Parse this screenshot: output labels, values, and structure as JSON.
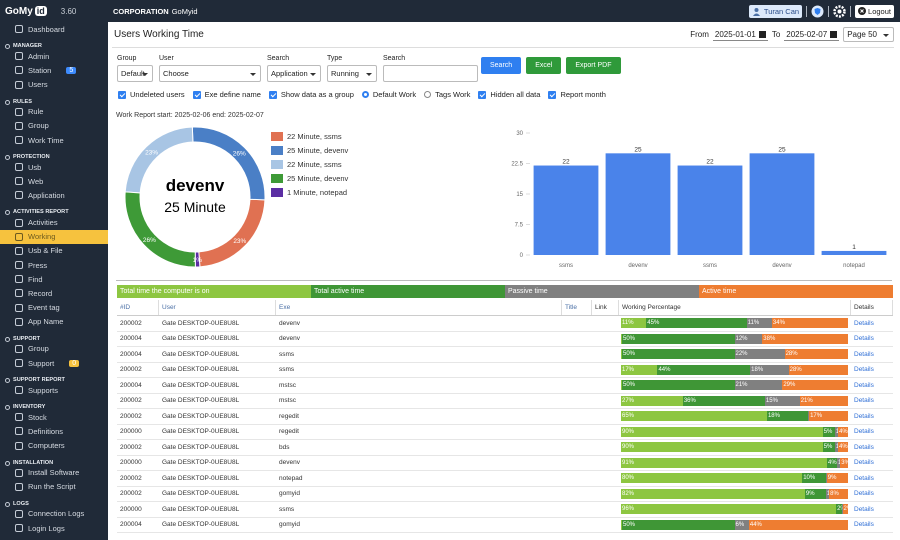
{
  "sidebar": {
    "brand": "GoMy",
    "brand_tag": "id",
    "version": "3.60",
    "menu": [
      {
        "label": "Dashboard"
      },
      {
        "heading": "MANAGER"
      },
      {
        "label": "Admin"
      },
      {
        "label": "Station",
        "badge": 5
      },
      {
        "label": "Users"
      },
      {
        "heading": "RULES"
      },
      {
        "label": "Rule"
      },
      {
        "label": "Group"
      },
      {
        "label": "Work Time"
      },
      {
        "heading": "PROTECTION"
      },
      {
        "label": "Usb"
      },
      {
        "label": "Web"
      },
      {
        "label": "Application"
      },
      {
        "heading": "ACTIVITIES REPORT"
      },
      {
        "label": "Activities"
      },
      {
        "label": "Working",
        "active": true
      },
      {
        "label": "Usb & File"
      },
      {
        "label": "Press"
      },
      {
        "label": "Find"
      },
      {
        "label": "Record"
      },
      {
        "label": "Event tag"
      },
      {
        "label": "App Name"
      },
      {
        "heading": "SUPPORT"
      },
      {
        "label": "Group"
      },
      {
        "label": "Support",
        "badge": 0
      },
      {
        "heading": "SUPPORT REPORT"
      },
      {
        "label": "Supports"
      },
      {
        "heading": "INVENTORY"
      },
      {
        "label": "Stock"
      },
      {
        "label": "Definitions"
      },
      {
        "label": "Computers"
      },
      {
        "heading": "INSTALLATION"
      },
      {
        "label": "Install Software"
      },
      {
        "label": "Run the Script"
      },
      {
        "heading": "LOGS"
      },
      {
        "label": "Connection Logs"
      },
      {
        "label": "Login Logs"
      }
    ]
  },
  "topbar": {
    "org": "CORPORATION",
    "org_name": "GoMyid",
    "user": "Turan Can",
    "logout": "Logout"
  },
  "page": {
    "title": "Users Working Time",
    "from_label": "From",
    "from": "2025-01-01",
    "to_label": "To",
    "to": "2025-02-07",
    "page_size": "Page 50"
  },
  "filters": [
    {
      "label": "Group",
      "value": "Default"
    },
    {
      "label": "User",
      "value": "Choose"
    },
    {
      "label": "Search",
      "value": "Application"
    },
    {
      "label": "Type",
      "value": "Running"
    },
    {
      "label": "Search"
    }
  ],
  "buttons": [
    "Search",
    "Excel",
    "Export PDF"
  ],
  "options": [
    {
      "label": "Undeleted users",
      "kind": "checkbox",
      "checked": true
    },
    {
      "label": "Exe define name",
      "kind": "checkbox",
      "checked": true
    },
    {
      "label": "Show data as a group",
      "kind": "checkbox",
      "checked": true
    },
    {
      "label": "Default Work",
      "kind": "radio",
      "checked": true
    },
    {
      "label": "Tags Work",
      "kind": "radio",
      "checked": false
    },
    {
      "label": "Hidden all data",
      "kind": "checkbox",
      "checked": true
    },
    {
      "label": "Report month",
      "kind": "checkbox",
      "checked": true
    }
  ],
  "report_range": "Work Report start: 2025-02-06 end: 2025-02-07",
  "chart_data": [
    {
      "type": "donut",
      "center_title": "devenv",
      "center_subtitle": "25 Minute",
      "categories": [
        "22 Minute, ssms",
        "25 Minute, devenv",
        "22 Minute, ssms",
        "25 Minute, devenv",
        "1 Minute, notepad"
      ],
      "values": [
        23,
        26,
        23,
        26,
        1
      ],
      "value_labels": [
        "23%",
        "26%",
        "23%",
        "26%",
        "1%"
      ],
      "colors": [
        "#e07152",
        "#4a7fc6",
        "#a8c5e4",
        "#3e9a37",
        "#5b2ea3"
      ]
    },
    {
      "type": "bar",
      "categories": [
        "ssms",
        "devenv",
        "ssms",
        "devenv",
        "notepad"
      ],
      "values": [
        22,
        25,
        22,
        25,
        1
      ],
      "color": "#4a83ea",
      "ylim": [
        0,
        30
      ],
      "yticks": [
        0,
        7.5,
        15,
        22.5,
        30
      ],
      "grid": false
    }
  ],
  "table": {
    "legend": [
      {
        "label": "Total time the computer is on",
        "color": "#8dc641"
      },
      {
        "label": "Total active time",
        "color": "#3f9636"
      },
      {
        "label": "Passive time",
        "color": "#808080"
      },
      {
        "label": "Active time",
        "color": "#ee7d31"
      }
    ],
    "columns": [
      "#ID",
      "User",
      "Exe",
      "Title",
      "Link",
      "Working Percentage",
      "Details"
    ],
    "details": "Details",
    "rows": [
      {
        "id": 200002,
        "user": "Gate DESKTOP-0UE8U8L",
        "exe": "devenv",
        "values": [
          11,
          45,
          11,
          34
        ],
        "value_labels": [
          "11%",
          "45%",
          "11%",
          "34%"
        ]
      },
      {
        "id": 200004,
        "user": "Gate DESKTOP-0UE8U8L",
        "exe": "devenv",
        "values": [
          0,
          50,
          12,
          38
        ],
        "value_labels": [
          "0%",
          "50%",
          "12%",
          "38%"
        ]
      },
      {
        "id": 200004,
        "user": "Gate DESKTOP-0UE8U8L",
        "exe": "ssms",
        "values": [
          0,
          50,
          22,
          28
        ],
        "value_labels": [
          "0%",
          "50%",
          "22%",
          "28%"
        ]
      },
      {
        "id": 200002,
        "user": "Gate DESKTOP-0UE8U8L",
        "exe": "ssms",
        "values": [
          17,
          44,
          18,
          28
        ],
        "value_labels": [
          "17%",
          "44%",
          "18%",
          "28%"
        ]
      },
      {
        "id": 200004,
        "user": "Gate DESKTOP-0UE8U8L",
        "exe": "mstsc",
        "values": [
          0,
          50,
          21,
          29
        ],
        "value_labels": [
          "0%",
          "50%",
          "21%",
          "29%"
        ]
      },
      {
        "id": 200002,
        "user": "Gate DESKTOP-0UE8U8L",
        "exe": "mstsc",
        "values": [
          27,
          36,
          15,
          21
        ],
        "value_labels": [
          "27%",
          "36%",
          "15%",
          "21%"
        ]
      },
      {
        "id": 200002,
        "user": "Gate DESKTOP-0UE8U8L",
        "exe": "regedit",
        "values": [
          65,
          18,
          0,
          17
        ],
        "value_labels": [
          "65%",
          "18%",
          "0%",
          "17%"
        ]
      },
      {
        "id": 200000,
        "user": "Gate DESKTOP-0UE8U8L",
        "exe": "regedit",
        "values": [
          90,
          5,
          1,
          4
        ],
        "value_labels": [
          "90%",
          "5%",
          "1%",
          "4%"
        ]
      },
      {
        "id": 200002,
        "user": "Gate DESKTOP-0UE8U8L",
        "exe": "bds",
        "values": [
          90,
          5,
          1,
          4
        ],
        "value_labels": [
          "90%",
          "5%",
          "1%",
          "4%"
        ]
      },
      {
        "id": 200000,
        "user": "Gate DESKTOP-0UE8U8L",
        "exe": "devenv",
        "values": [
          91,
          4,
          1,
          3
        ],
        "value_labels": [
          "91%",
          "4%",
          "1%",
          "3%"
        ]
      },
      {
        "id": 200002,
        "user": "Gate DESKTOP-0UE8U8L",
        "exe": "notepad",
        "values": [
          80,
          10,
          0,
          9
        ],
        "value_labels": [
          "80%",
          "10%",
          "0%",
          "9%"
        ]
      },
      {
        "id": 200002,
        "user": "Gate DESKTOP-0UE8U8L",
        "exe": "gomyid",
        "values": [
          82,
          9,
          1,
          8
        ],
        "value_labels": [
          "82%",
          "9%",
          "1%",
          "8%"
        ]
      },
      {
        "id": 200000,
        "user": "Gate DESKTOP-0UE8U8L",
        "exe": "ssms",
        "values": [
          96,
          2,
          0,
          2
        ],
        "value_labels": [
          "96%",
          "2%",
          "0%",
          "2%"
        ]
      },
      {
        "id": 200004,
        "user": "Gate DESKTOP-0UE8U8L",
        "exe": "gomyid",
        "values": [
          0,
          50,
          6,
          44
        ],
        "value_labels": [
          "0%",
          "50%",
          "6%",
          "44%"
        ]
      }
    ]
  }
}
